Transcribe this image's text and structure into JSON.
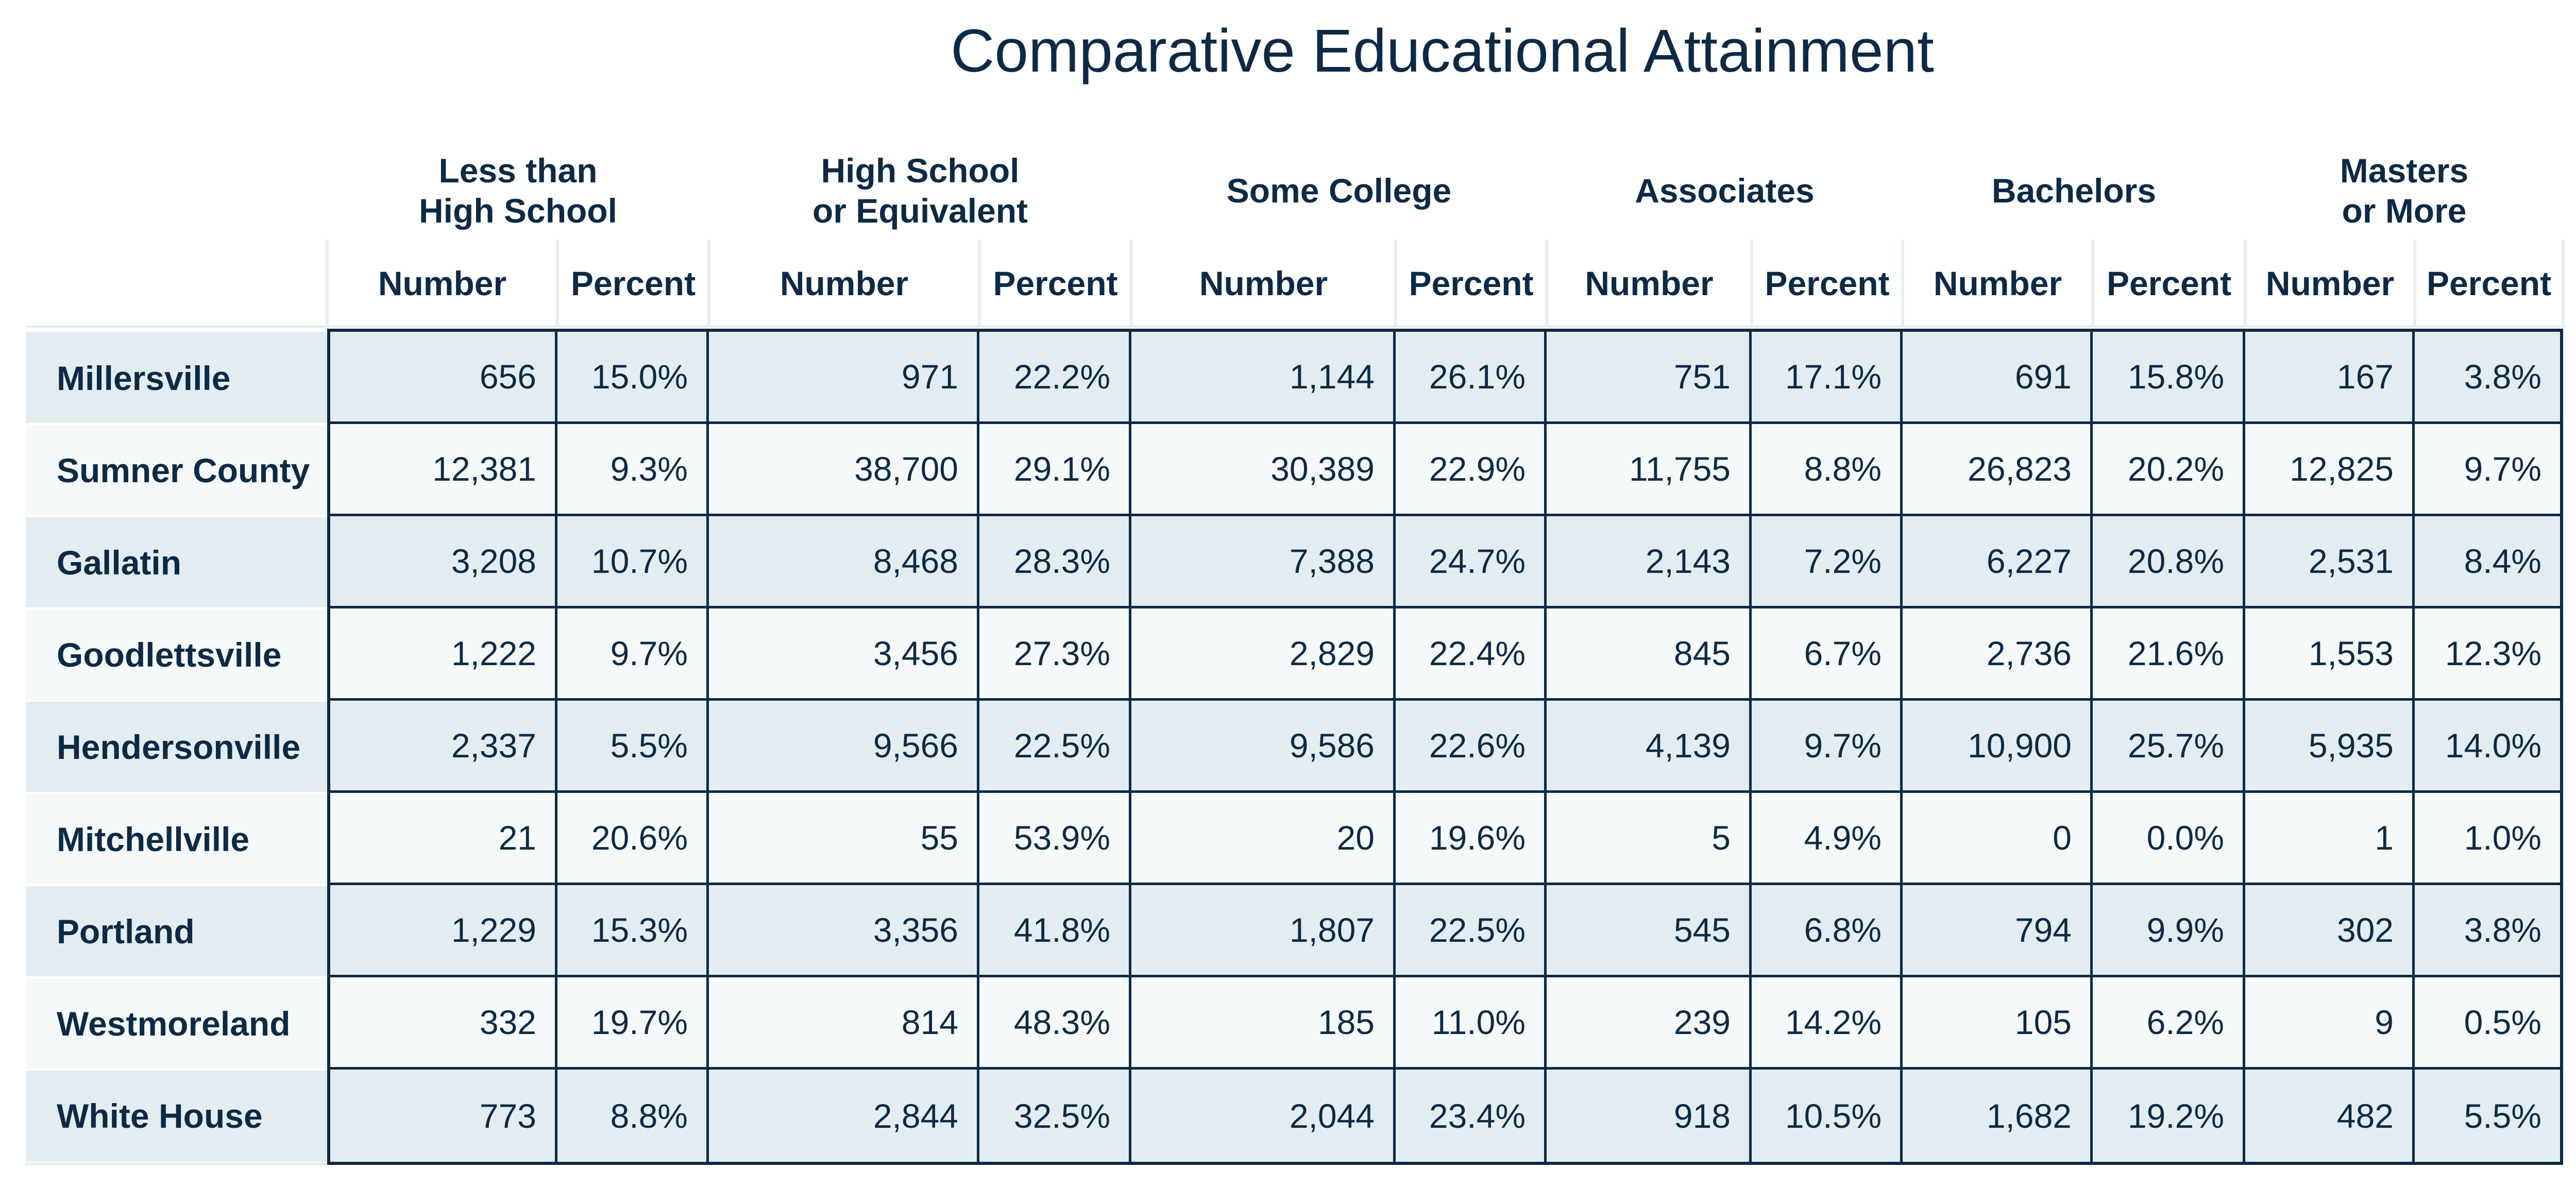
{
  "chart_data": {
    "type": "table",
    "title": "Comparative Educational Attainment",
    "groups": [
      "Less than\nHigh School",
      "High School\nor Equivalent",
      "Some College",
      "Associates",
      "Bachelors",
      "Masters\nor More"
    ],
    "subcolumns": [
      "Number",
      "Percent"
    ],
    "rows": [
      {
        "name": "Millersville",
        "values": [
          "656",
          "15.0%",
          "971",
          "22.2%",
          "1,144",
          "26.1%",
          "751",
          "17.1%",
          "691",
          "15.8%",
          "167",
          "3.8%"
        ]
      },
      {
        "name": "Sumner County",
        "values": [
          "12,381",
          "9.3%",
          "38,700",
          "29.1%",
          "30,389",
          "22.9%",
          "11,755",
          "8.8%",
          "26,823",
          "20.2%",
          "12,825",
          "9.7%"
        ]
      },
      {
        "name": "Gallatin",
        "values": [
          "3,208",
          "10.7%",
          "8,468",
          "28.3%",
          "7,388",
          "24.7%",
          "2,143",
          "7.2%",
          "6,227",
          "20.8%",
          "2,531",
          "8.4%"
        ]
      },
      {
        "name": "Goodlettsville",
        "values": [
          "1,222",
          "9.7%",
          "3,456",
          "27.3%",
          "2,829",
          "22.4%",
          "845",
          "6.7%",
          "2,736",
          "21.6%",
          "1,553",
          "12.3%"
        ]
      },
      {
        "name": "Hendersonville",
        "values": [
          "2,337",
          "5.5%",
          "9,566",
          "22.5%",
          "9,586",
          "22.6%",
          "4,139",
          "9.7%",
          "10,900",
          "25.7%",
          "5,935",
          "14.0%"
        ]
      },
      {
        "name": "Mitchellville",
        "values": [
          "21",
          "20.6%",
          "55",
          "53.9%",
          "20",
          "19.6%",
          "5",
          "4.9%",
          "0",
          "0.0%",
          "1",
          "1.0%"
        ]
      },
      {
        "name": "Portland",
        "values": [
          "1,229",
          "15.3%",
          "3,356",
          "41.8%",
          "1,807",
          "22.5%",
          "545",
          "6.8%",
          "794",
          "9.9%",
          "302",
          "3.8%"
        ]
      },
      {
        "name": "Westmoreland",
        "values": [
          "332",
          "19.7%",
          "814",
          "48.3%",
          "185",
          "11.0%",
          "239",
          "14.2%",
          "105",
          "6.2%",
          "9",
          "0.5%"
        ]
      },
      {
        "name": "White House",
        "values": [
          "773",
          "8.8%",
          "2,844",
          "32.5%",
          "2,044",
          "23.4%",
          "918",
          "10.5%",
          "1,682",
          "19.2%",
          "482",
          "5.5%"
        ]
      }
    ],
    "colors": {
      "text": "#0d2a45",
      "border": "#0d2a45",
      "row_shade": "#e3edf1",
      "row_light": "#f5f9fa"
    }
  }
}
